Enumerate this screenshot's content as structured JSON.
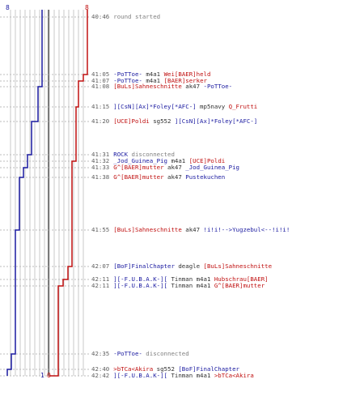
{
  "colors": {
    "team_blue": "#1a1aa0",
    "team_red": "#c01010",
    "timeline": "#c8c8c8",
    "center_line": "#7a7a7a",
    "timestamp": "#606060",
    "note": "#808080"
  },
  "counts": {
    "blue_start": "8",
    "red_start": "8",
    "blue_end": "1",
    "red_end": "0"
  },
  "events": [
    {
      "time": "40:46",
      "type": "note",
      "text": "round started"
    },
    {
      "time": "41:05",
      "type": "kill",
      "killer": "-PoTToe-",
      "killer_team": "blue",
      "weapon": "m4a1",
      "victim": "Wei[BAER]held",
      "victim_team": "red"
    },
    {
      "time": "41:07",
      "type": "kill",
      "killer": "-PoTToe-",
      "killer_team": "blue",
      "weapon": "m4a1",
      "victim": "[BAER]serker",
      "victim_team": "red"
    },
    {
      "time": "41:08",
      "type": "kill",
      "killer": "[BuLs]Sahneschnitte",
      "killer_team": "red",
      "weapon": "ak47",
      "victim": "-PoTToe-",
      "victim_team": "blue"
    },
    {
      "time": "41:15",
      "type": "kill",
      "killer": "][CsN][Ax]*Foley[*AFC-]",
      "killer_team": "blue",
      "weapon": "mp5navy",
      "victim": "Q_Frutti",
      "victim_team": "red"
    },
    {
      "time": "41:20",
      "type": "kill",
      "killer": "[UCE]Poldi",
      "killer_team": "red",
      "weapon": "sg552",
      "victim": "][CsN][Ax]*Foley[*AFC-]",
      "victim_team": "blue"
    },
    {
      "time": "41:31",
      "type": "note",
      "text": "ROCK disconnected",
      "name_part": "ROCK",
      "rest": " disconnected",
      "team": "blue"
    },
    {
      "time": "41:32",
      "type": "kill",
      "killer": "_Jod_Guinea_Pig",
      "killer_team": "blue",
      "weapon": "m4a1",
      "victim": "[UCE]Poldi",
      "victim_team": "red"
    },
    {
      "time": "41:33",
      "type": "kill",
      "killer": "G^[BAER]mutter",
      "killer_team": "red",
      "weapon": "ak47",
      "victim": "_Jod_Guinea_Pig",
      "victim_team": "blue"
    },
    {
      "time": "41:38",
      "type": "kill",
      "killer": "G^[BAER]mutter",
      "killer_team": "red",
      "weapon": "ak47",
      "victim": "Pustekuchen",
      "victim_team": "blue"
    },
    {
      "time": "41:55",
      "type": "kill",
      "killer": "[BuLs]Sahneschnitte",
      "killer_team": "red",
      "weapon": "ak47",
      "victim": "!i!i!-->Yugzebul<--!i!i!",
      "victim_team": "blue"
    },
    {
      "time": "42:07",
      "type": "kill",
      "killer": "[BoF]FinalChapter",
      "killer_team": "blue",
      "weapon": "deagle",
      "victim": "[BuLs]Sahneschnitte",
      "victim_team": "red"
    },
    {
      "time": "42:11",
      "type": "kill",
      "killer": "][-F.U.B.A.K-][",
      "killer_team": "blue",
      "weapon": "Tinman m4a1",
      "victim": "Hubschrau[BAER]",
      "victim_team": "red"
    },
    {
      "time": "42:11",
      "type": "kill",
      "killer": "][-F.U.B.A.K-][",
      "killer_team": "blue",
      "weapon": "Tinman m4a1",
      "victim": "G^[BAER]mutter",
      "victim_team": "red"
    },
    {
      "time": "42:35",
      "type": "note",
      "text": "-PoTToe- disconnected",
      "name_part": "-PoTToe-",
      "rest": " disconnected",
      "team": "blue"
    },
    {
      "time": "42:40",
      "type": "kill",
      "killer": ">bTCa<Akira",
      "killer_team": "red",
      "weapon": "sg552",
      "victim": "[BoF]FinalChapter",
      "victim_team": "blue"
    },
    {
      "time": "42:42",
      "type": "kill",
      "killer": "][-F.U.B.A.K-][",
      "killer_team": "blue",
      "weapon": "Tinman m4a1",
      "victim": ">bTCa<Akira",
      "victim_team": "red"
    }
  ]
}
